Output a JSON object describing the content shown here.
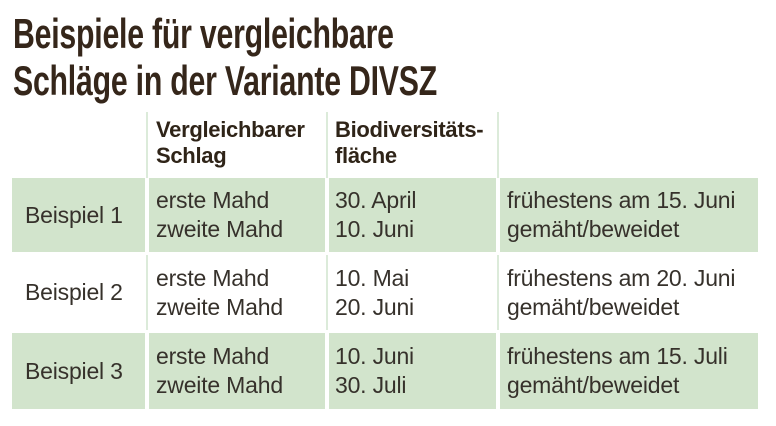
{
  "title": {
    "line1": "Beispiele für vergleichbare",
    "line2": "Schläge in der Variante DIVSZ"
  },
  "table": {
    "header": {
      "col1": "",
      "col2_lines": [
        "Vergleichbarer",
        "Schlag"
      ],
      "col3_lines": [
        "Biodiversitäts-",
        "fläche"
      ],
      "col4": ""
    },
    "rows": [
      {
        "label": "Beispiel 1",
        "vergleichbarer_schlag": [
          "erste Mahd",
          "zweite Mahd"
        ],
        "biodiversitaetsflaeche": [
          "30. April",
          "10. Juni"
        ],
        "bewirtschaftung": [
          "frühestens am 15. Juni",
          "gemäht/beweidet"
        ],
        "highlighted": true
      },
      {
        "label": "Beispiel 2",
        "vergleichbarer_schlag": [
          "erste Mahd",
          "zweite Mahd"
        ],
        "biodiversitaetsflaeche": [
          "10. Mai",
          "20. Juni"
        ],
        "bewirtschaftung": [
          "frühestens am 20. Juni",
          "gemäht/beweidet"
        ],
        "highlighted": false
      },
      {
        "label": "Beispiel 3",
        "vergleichbarer_schlag": [
          "erste Mahd",
          "zweite Mahd"
        ],
        "biodiversitaetsflaeche": [
          "10. Juni",
          "30. Juli"
        ],
        "bewirtschaftung": [
          "frühestens am 15. Juli",
          "gemäht/beweidet"
        ],
        "highlighted": true
      }
    ]
  },
  "colors": {
    "background": "#ffffff",
    "row_highlight": "#d2e4cc",
    "divider": "#dcebda",
    "title_text": "#35261a",
    "header_text": "#2f2418",
    "body_text": "#36312b"
  }
}
